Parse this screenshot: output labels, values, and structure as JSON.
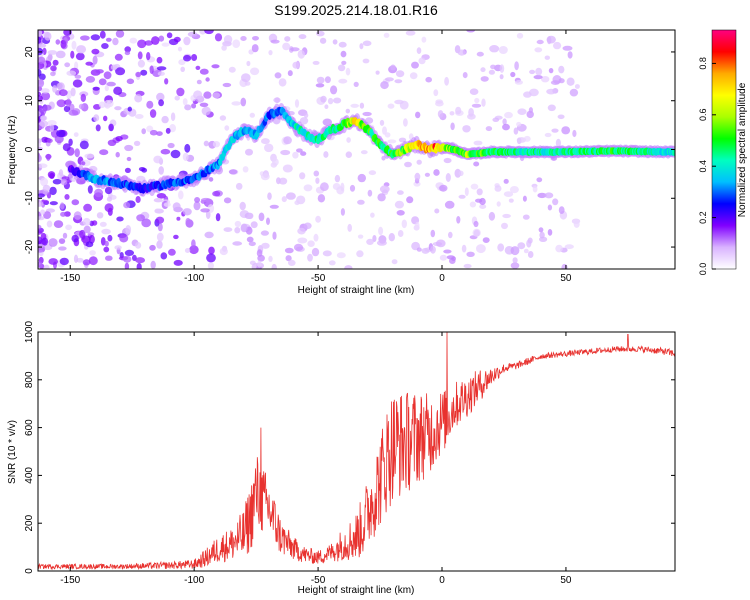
{
  "title": "S199.2025.214.18.01.R16",
  "chart_data": [
    {
      "type": "heatmap",
      "xlabel": "Height of straight line (km)",
      "ylabel": "Frequency (Hz)",
      "xlim": [
        -163,
        94
      ],
      "ylim": [
        -24.5,
        24.5
      ],
      "x_ticks": [
        -150,
        -100,
        -50,
        0,
        50
      ],
      "y_ticks": [
        -20,
        -10,
        0,
        10,
        20
      ],
      "colorbar": {
        "label": "Normalized spectral amplitude",
        "range": [
          0,
          0.93
        ],
        "ticks": [
          "0.0",
          "0.2",
          "0.4",
          "0.6",
          "0.8"
        ],
        "colors": [
          "#ffffff",
          "#d9b3ff",
          "#8000ff",
          "#0000ff",
          "#00bfff",
          "#00ffbf",
          "#00ff00",
          "#aaff00",
          "#ffff00",
          "#ffaa00",
          "#ff0000",
          "#ff0080"
        ]
      },
      "ridge": {
        "x": [
          -150,
          -140,
          -130,
          -120,
          -110,
          -100,
          -90,
          -85,
          -80,
          -75,
          -70,
          -65,
          -60,
          -55,
          -50,
          -45,
          -40,
          -35,
          -32,
          -28,
          -25,
          -20,
          -15,
          -10,
          -5,
          0,
          5,
          10,
          20,
          30,
          50,
          70,
          90
        ],
        "freq": [
          -4,
          -6,
          -7,
          -8,
          -7,
          -6,
          -3,
          2,
          4,
          3,
          7,
          8,
          5,
          3,
          2,
          4,
          5,
          6,
          5,
          3,
          1,
          -1,
          0,
          1,
          0,
          0.5,
          0,
          -1,
          -0.5,
          -0.5,
          -0.5,
          -0.3,
          -0.5
        ],
        "amplitude": [
          0.2,
          0.35,
          0.3,
          0.25,
          0.3,
          0.3,
          0.35,
          0.4,
          0.35,
          0.35,
          0.3,
          0.3,
          0.4,
          0.45,
          0.45,
          0.45,
          0.5,
          0.7,
          0.55,
          0.5,
          0.5,
          0.5,
          0.6,
          0.8,
          0.85,
          0.7,
          0.55,
          0.6,
          0.5,
          0.45,
          0.45,
          0.5,
          0.4
        ]
      }
    },
    {
      "type": "line",
      "xlabel": "Height of straight line (km)",
      "ylabel": "SNR (10 * v/v)",
      "xlim": [
        -163,
        94
      ],
      "ylim": [
        0,
        1000
      ],
      "x_ticks": [
        -150,
        -100,
        -50,
        0,
        50
      ],
      "y_ticks": [
        0,
        200,
        400,
        600,
        800,
        1000
      ],
      "color": "#e8322f",
      "envelope": {
        "x": [
          -163,
          -150,
          -130,
          -110,
          -100,
          -95,
          -90,
          -85,
          -80,
          -77,
          -75,
          -72,
          -70,
          -65,
          -60,
          -55,
          -50,
          -45,
          -40,
          -35,
          -32,
          -30,
          -25,
          -22,
          -20,
          -15,
          -10,
          -5,
          -2,
          0,
          2,
          5,
          10,
          15,
          20,
          25,
          30,
          35,
          40,
          50,
          60,
          70,
          80,
          90,
          94
        ],
        "y": [
          20,
          20,
          20,
          25,
          30,
          60,
          100,
          120,
          160,
          250,
          350,
          300,
          280,
          150,
          100,
          70,
          60,
          80,
          120,
          150,
          200,
          260,
          400,
          500,
          550,
          560,
          580,
          590,
          620,
          640,
          650,
          700,
          740,
          780,
          820,
          850,
          860,
          880,
          900,
          910,
          920,
          930,
          930,
          920,
          910
        ]
      },
      "noise": [
        10,
        10,
        10,
        15,
        20,
        40,
        60,
        70,
        110,
        150,
        170,
        150,
        130,
        80,
        50,
        35,
        30,
        40,
        70,
        100,
        130,
        150,
        200,
        230,
        240,
        220,
        200,
        170,
        150,
        140,
        120,
        100,
        90,
        70,
        40,
        20,
        15,
        15,
        12,
        12,
        12,
        12,
        12,
        15,
        15
      ],
      "spikes": [
        {
          "x": -73,
          "y": 600
        },
        {
          "x": 2,
          "y": 1000
        },
        {
          "x": 75,
          "y": 990
        }
      ]
    }
  ]
}
